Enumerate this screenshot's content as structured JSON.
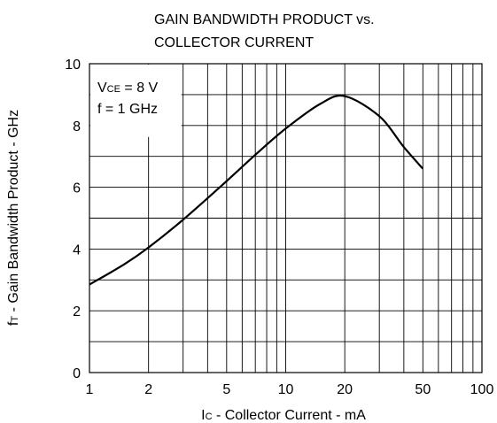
{
  "chart_data": {
    "type": "line",
    "title_lines": [
      "GAIN BANDWIDTH PRODUCT vs.",
      "COLLECTOR CURRENT"
    ],
    "xlabel": {
      "main": "I",
      "sub": "C",
      "rest": " - Collector Current - mA"
    },
    "ylabel": {
      "main": "f",
      "sub": "T",
      "rest": " - Gain Bandwidth Product - GHz"
    },
    "x_scale": "log",
    "xlim": [
      1,
      100
    ],
    "ylim": [
      0,
      10
    ],
    "x_ticks": [
      1,
      2,
      5,
      10,
      20,
      50,
      100
    ],
    "y_ticks": [
      0,
      2,
      4,
      6,
      8,
      10
    ],
    "grid": true,
    "annotation": {
      "line1": {
        "main": "V",
        "sub": "CE",
        "rest": " = 8 V"
      },
      "line2": "f = 1 GHz"
    },
    "series": [
      {
        "x": [
          1,
          1.5,
          2,
          3,
          5,
          7,
          10,
          15,
          20,
          30,
          40,
          50
        ],
        "y": [
          2.85,
          3.5,
          4.05,
          4.95,
          6.2,
          7.05,
          7.9,
          8.7,
          8.95,
          8.3,
          7.3,
          6.6
        ]
      }
    ]
  }
}
